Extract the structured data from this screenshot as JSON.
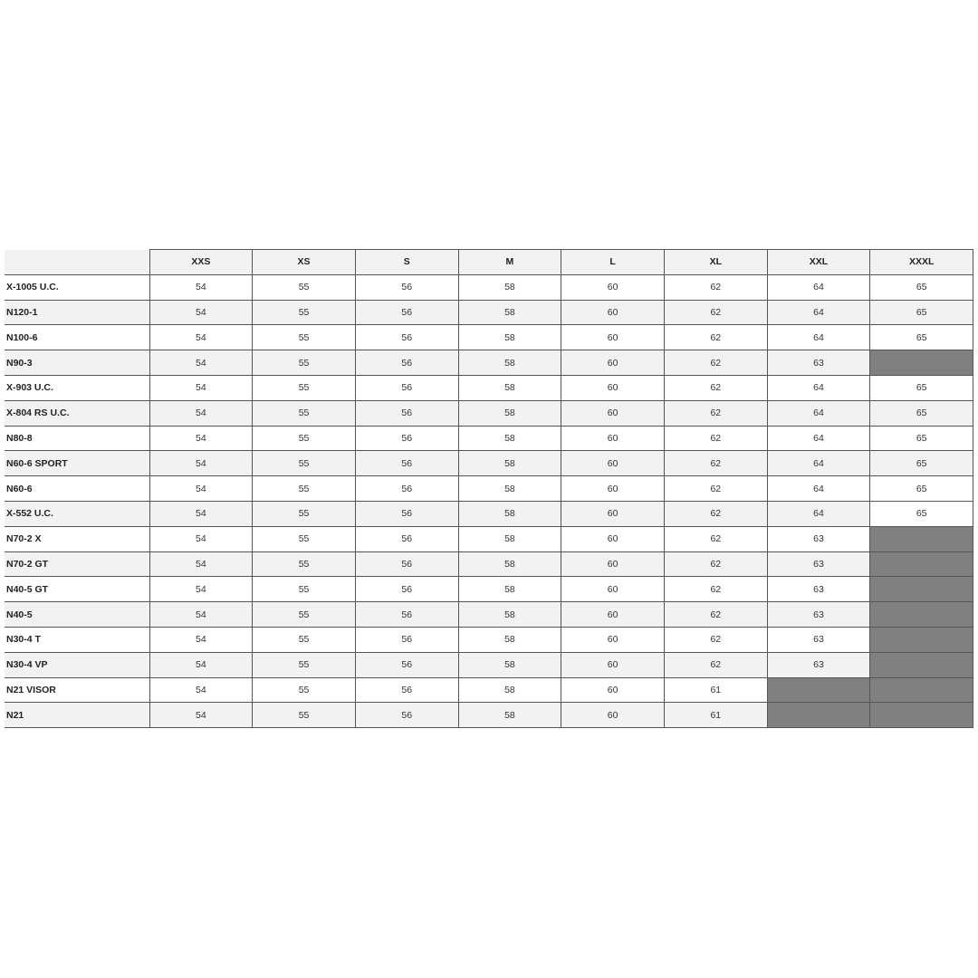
{
  "table": {
    "headers": [
      "",
      "XXS",
      "XS",
      "S",
      "M",
      "L",
      "XL",
      "XXL",
      "XXXL"
    ],
    "rows": [
      {
        "model": "X-1005 U.C.",
        "values": [
          "54",
          "55",
          "56",
          "58",
          "60",
          "62",
          "64",
          "65"
        ]
      },
      {
        "model": "N120-1",
        "values": [
          "54",
          "55",
          "56",
          "58",
          "60",
          "62",
          "64",
          "65"
        ]
      },
      {
        "model": "N100-6",
        "values": [
          "54",
          "55",
          "56",
          "58",
          "60",
          "62",
          "64",
          "65"
        ]
      },
      {
        "model": "N90-3",
        "values": [
          "54",
          "55",
          "56",
          "58",
          "60",
          "62",
          "63",
          null
        ]
      },
      {
        "model": "X-903 U.C.",
        "values": [
          "54",
          "55",
          "56",
          "58",
          "60",
          "62",
          "64",
          "65"
        ]
      },
      {
        "model": "X-804 RS U.C.",
        "values": [
          "54",
          "55",
          "56",
          "58",
          "60",
          "62",
          "64",
          "65"
        ]
      },
      {
        "model": "N80-8",
        "values": [
          "54",
          "55",
          "56",
          "58",
          "60",
          "62",
          "64",
          "65"
        ]
      },
      {
        "model": "N60-6 SPORT",
        "values": [
          "54",
          "55",
          "56",
          "58",
          "60",
          "62",
          "64",
          "65"
        ]
      },
      {
        "model": "N60-6",
        "values": [
          "54",
          "55",
          "56",
          "58",
          "60",
          "62",
          "64",
          "65"
        ]
      },
      {
        "model": "X-552 U.C.",
        "values": [
          "54",
          "55",
          "56",
          "58",
          "60",
          "62",
          "64",
          "65"
        ]
      },
      {
        "model": "N70-2 X",
        "values": [
          "54",
          "55",
          "56",
          "58",
          "60",
          "62",
          "63",
          null
        ]
      },
      {
        "model": "N70-2 GT",
        "values": [
          "54",
          "55",
          "56",
          "58",
          "60",
          "62",
          "63",
          null
        ]
      },
      {
        "model": "N40-5 GT",
        "values": [
          "54",
          "55",
          "56",
          "58",
          "60",
          "62",
          "63",
          null
        ]
      },
      {
        "model": "N40-5",
        "values": [
          "54",
          "55",
          "56",
          "58",
          "60",
          "62",
          "63",
          null
        ]
      },
      {
        "model": "N30-4 T",
        "values": [
          "54",
          "55",
          "56",
          "58",
          "60",
          "62",
          "63",
          null
        ]
      },
      {
        "model": "N30-4 VP",
        "values": [
          "54",
          "55",
          "56",
          "58",
          "60",
          "62",
          "63",
          null
        ]
      },
      {
        "model": "N21 VISOR",
        "values": [
          "54",
          "55",
          "56",
          "58",
          "60",
          "61",
          null,
          null
        ]
      },
      {
        "model": "N21",
        "values": [
          "54",
          "55",
          "56",
          "58",
          "60",
          "61",
          null,
          null
        ]
      }
    ],
    "unavailable_color": "#808080"
  }
}
